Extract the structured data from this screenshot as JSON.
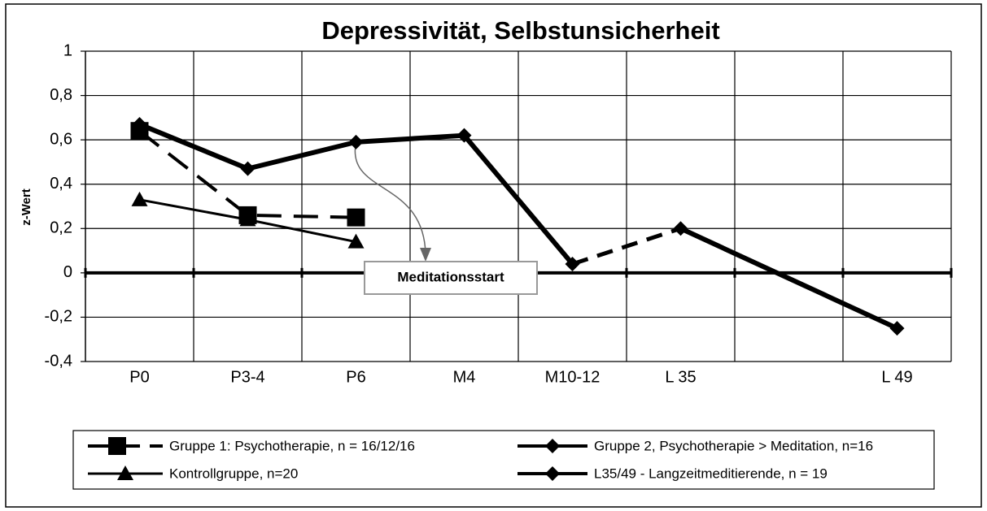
{
  "chart_data": {
    "type": "line",
    "title": "Depressivität, Selbstunsicherheit",
    "y_label": "z-Wert",
    "annotation": "Meditationsstart",
    "categories": [
      "P0",
      "P3-4",
      "P6",
      "M4",
      "M10-12",
      "L 35",
      null,
      "L 49"
    ],
    "ylim": [
      -0.4,
      1
    ],
    "yticks": [
      {
        "value": -0.4,
        "label": "-0,4"
      },
      {
        "value": -0.2,
        "label": "-0,2"
      },
      0,
      {
        "value": 0.2,
        "label": "0,2"
      },
      {
        "value": 0.4,
        "label": "0,4"
      },
      {
        "value": 0.6,
        "label": "0,6"
      },
      {
        "value": 0.8,
        "label": "0,8"
      },
      1
    ],
    "grid": true,
    "connect_gaps": true,
    "legend": "bottom",
    "series": [
      {
        "name": "Gruppe 1: Psychotherapie, n = 16/12/16",
        "color": "#000000",
        "marker": "square",
        "line_style": "dashed",
        "line_width": 4,
        "values": [
          0.64,
          0.26,
          0.25,
          null,
          null,
          null,
          null,
          null
        ]
      },
      {
        "name": "Gruppe 2, Psychotherapie > Meditation, n=16",
        "color": "#000000",
        "marker": "diamond",
        "line_style": "solid",
        "line_width": 6,
        "values": [
          0.67,
          0.47,
          0.59,
          0.62,
          0.04,
          null,
          null,
          null
        ]
      },
      {
        "name": "Kontrollgruppe, n=20",
        "color": "#000000",
        "marker": "triangle",
        "line_style": "solid",
        "line_width": 3,
        "values": [
          0.33,
          0.24,
          0.14,
          null,
          null,
          null,
          null,
          null
        ]
      },
      {
        "name": "L35/49 - Langzeitmeditierende, n = 19",
        "color": "#000000",
        "marker": "diamond",
        "line_style": "solid",
        "line_width": 6,
        "values": [
          null,
          null,
          null,
          null,
          null,
          0.2,
          null,
          -0.25
        ]
      }
    ]
  }
}
